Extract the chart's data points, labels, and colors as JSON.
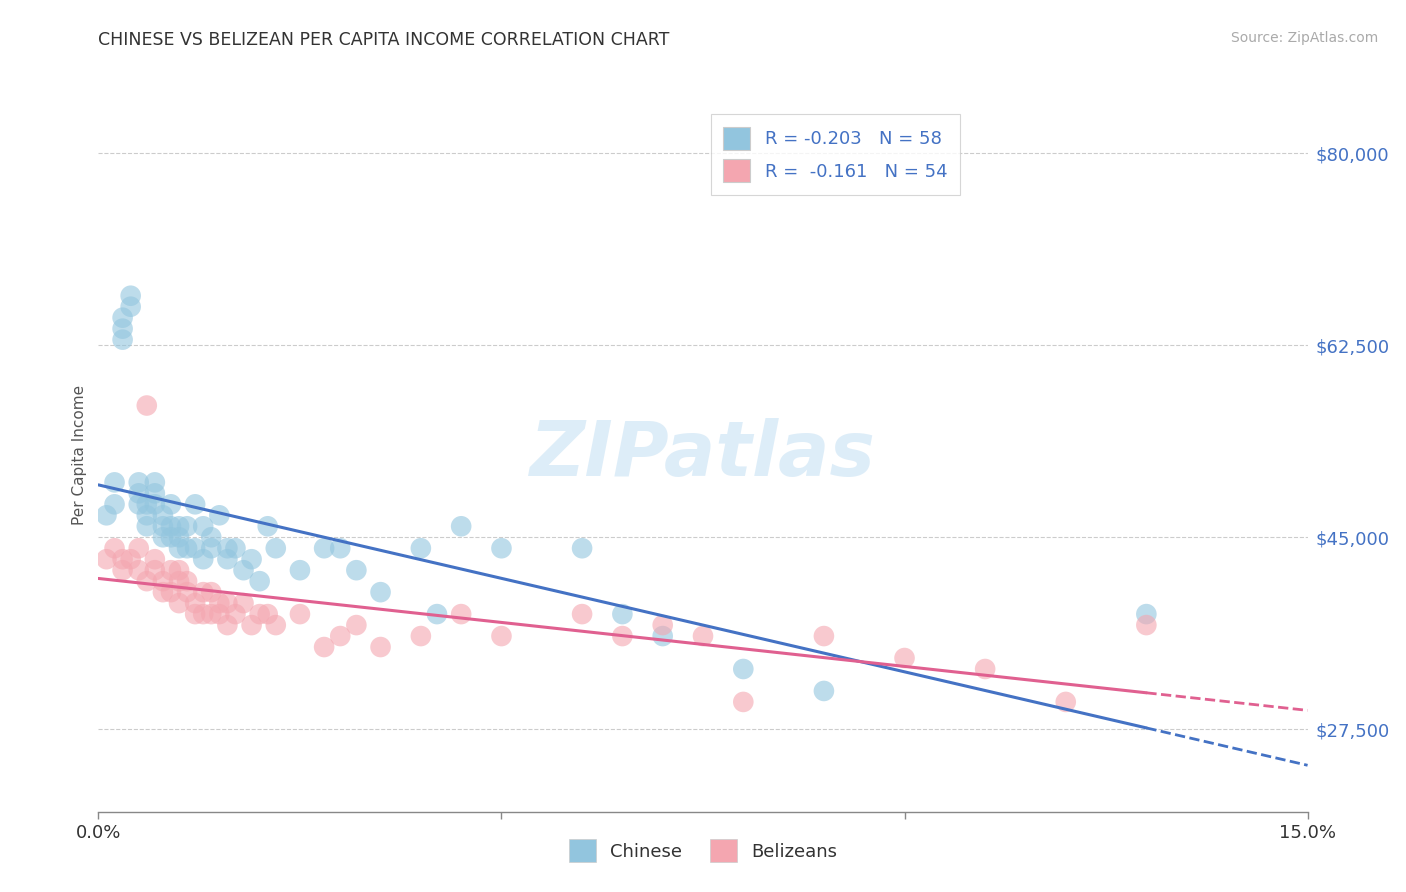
{
  "title": "CHINESE VS BELIZEAN PER CAPITA INCOME CORRELATION CHART",
  "source": "Source: ZipAtlas.com",
  "ylabel": "Per Capita Income",
  "xlim": [
    0.0,
    0.15
  ],
  "ylim": [
    20000,
    85000
  ],
  "ytick_positions": [
    27500,
    45000,
    62500,
    80000
  ],
  "ytick_labels": [
    "$27,500",
    "$45,000",
    "$62,500",
    "$80,000"
  ],
  "chinese_color": "#92c5de",
  "belizean_color": "#f4a6b0",
  "chinese_line_color": "#4472c4",
  "belizean_line_color": "#e06090",
  "legend_chinese_label": "R = -0.203   N = 58",
  "legend_belizean_label": "R =  -0.161   N = 54",
  "background_color": "#ffffff",
  "grid_color": "#cccccc",
  "watermark": "ZIPatlas",
  "chinese_x": [
    0.001,
    0.002,
    0.002,
    0.003,
    0.003,
    0.003,
    0.004,
    0.004,
    0.005,
    0.005,
    0.005,
    0.006,
    0.006,
    0.006,
    0.007,
    0.007,
    0.007,
    0.008,
    0.008,
    0.008,
    0.009,
    0.009,
    0.009,
    0.01,
    0.01,
    0.01,
    0.011,
    0.011,
    0.012,
    0.012,
    0.013,
    0.013,
    0.014,
    0.014,
    0.015,
    0.016,
    0.016,
    0.017,
    0.018,
    0.019,
    0.02,
    0.021,
    0.022,
    0.025,
    0.028,
    0.03,
    0.032,
    0.035,
    0.04,
    0.042,
    0.045,
    0.05,
    0.06,
    0.065,
    0.07,
    0.08,
    0.09,
    0.13
  ],
  "chinese_y": [
    47000,
    50000,
    48000,
    65000,
    64000,
    63000,
    67000,
    66000,
    50000,
    49000,
    48000,
    48000,
    47000,
    46000,
    50000,
    49000,
    48000,
    47000,
    46000,
    45000,
    48000,
    46000,
    45000,
    46000,
    45000,
    44000,
    46000,
    44000,
    48000,
    44000,
    46000,
    43000,
    45000,
    44000,
    47000,
    44000,
    43000,
    44000,
    42000,
    43000,
    41000,
    46000,
    44000,
    42000,
    44000,
    44000,
    42000,
    40000,
    44000,
    38000,
    46000,
    44000,
    44000,
    38000,
    36000,
    33000,
    31000,
    38000
  ],
  "belizean_x": [
    0.001,
    0.002,
    0.003,
    0.003,
    0.004,
    0.005,
    0.005,
    0.006,
    0.006,
    0.007,
    0.007,
    0.008,
    0.008,
    0.009,
    0.009,
    0.01,
    0.01,
    0.01,
    0.011,
    0.011,
    0.012,
    0.012,
    0.013,
    0.013,
    0.014,
    0.014,
    0.015,
    0.015,
    0.016,
    0.016,
    0.017,
    0.018,
    0.019,
    0.02,
    0.021,
    0.022,
    0.025,
    0.028,
    0.03,
    0.032,
    0.035,
    0.04,
    0.045,
    0.05,
    0.06,
    0.065,
    0.07,
    0.075,
    0.08,
    0.09,
    0.1,
    0.11,
    0.12,
    0.13
  ],
  "belizean_y": [
    43000,
    44000,
    43000,
    42000,
    43000,
    44000,
    42000,
    57000,
    41000,
    43000,
    42000,
    41000,
    40000,
    42000,
    40000,
    42000,
    41000,
    39000,
    41000,
    40000,
    39000,
    38000,
    40000,
    38000,
    40000,
    38000,
    39000,
    38000,
    39000,
    37000,
    38000,
    39000,
    37000,
    38000,
    38000,
    37000,
    38000,
    35000,
    36000,
    37000,
    35000,
    36000,
    38000,
    36000,
    38000,
    36000,
    37000,
    36000,
    30000,
    36000,
    34000,
    33000,
    30000,
    37000
  ]
}
